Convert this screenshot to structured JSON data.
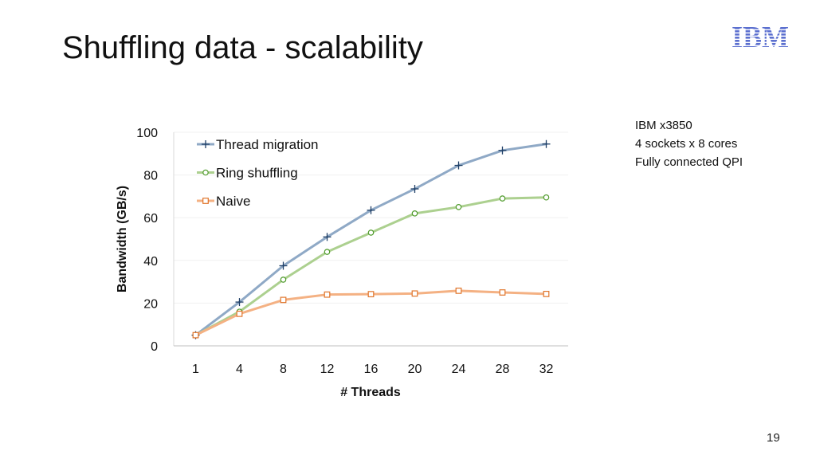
{
  "slide": {
    "title": "Shuffling data - scalability",
    "page_number": "19"
  },
  "logo": {
    "text": "IBM",
    "color": "#5b6fcf"
  },
  "note": {
    "lines": [
      "IBM x3850",
      "4 sockets x 8 cores",
      "Fully connected QPI"
    ]
  },
  "chart_data": {
    "type": "line",
    "title": "",
    "xlabel": "# Threads",
    "ylabel": "Bandwidth (GB/s)",
    "categories": [
      "1",
      "4",
      "8",
      "12",
      "16",
      "20",
      "24",
      "28",
      "32"
    ],
    "ylim": [
      0,
      100
    ],
    "yticks": [
      0,
      20,
      40,
      60,
      80,
      100
    ],
    "grid": true,
    "legend": "top-left",
    "series": [
      {
        "name": "Thread migration",
        "marker": "plus",
        "color": "#8fa9c6",
        "values": [
          5,
          20.5,
          37.5,
          51,
          63.5,
          73.5,
          84.5,
          91.5,
          94.5
        ]
      },
      {
        "name": "Ring shuffling",
        "marker": "circle",
        "color": "#acd08f",
        "values": [
          5,
          16,
          31,
          44,
          53,
          62,
          65,
          69,
          69.5
        ]
      },
      {
        "name": "Naive",
        "marker": "square",
        "color": "#f4b183",
        "values": [
          5,
          15,
          21.5,
          24,
          24.2,
          24.5,
          25.8,
          25,
          24.3
        ]
      }
    ]
  }
}
